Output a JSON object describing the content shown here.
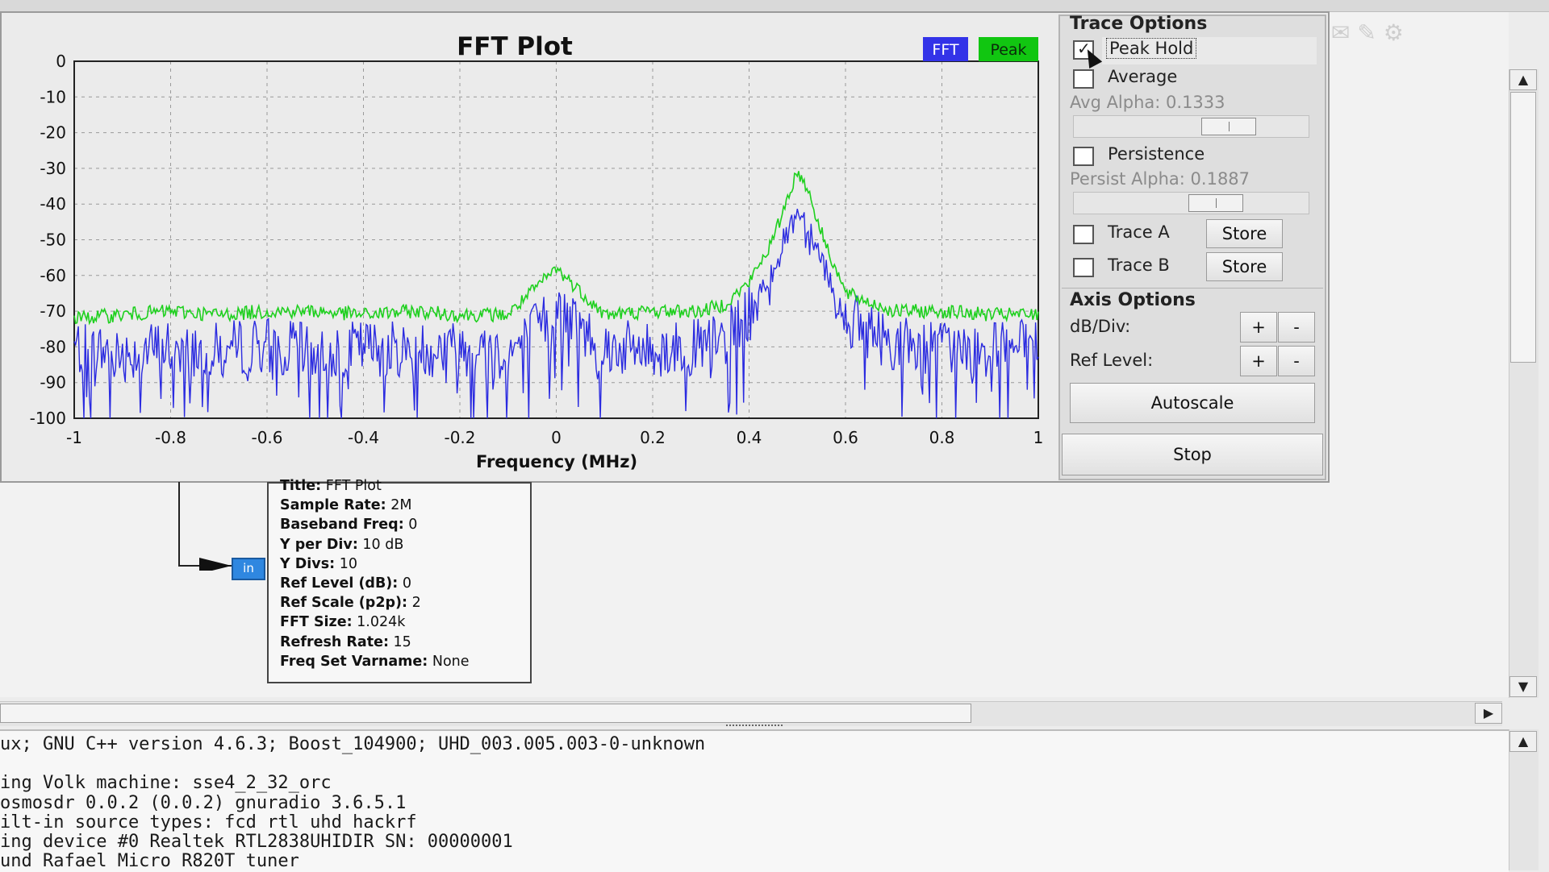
{
  "fft_plot": {
    "legend": {
      "fft": "FFT",
      "peak": "Peak"
    },
    "colors": {
      "fft": "#2b2be0",
      "peak": "#1ed01e",
      "legend_fft_bg": "#3333e8",
      "legend_peak_bg": "#11c611"
    }
  },
  "chart_data": {
    "type": "line",
    "title": "FFT Plot",
    "xlabel": "Frequency (MHz)",
    "ylabel": "",
    "xlim": [
      -1,
      1
    ],
    "ylim": [
      -100,
      0
    ],
    "x_ticks": [
      "-1",
      "-0.8",
      "-0.6",
      "-0.4",
      "-0.2",
      "0",
      "0.2",
      "0.4",
      "0.6",
      "0.8",
      "1"
    ],
    "y_ticks": [
      "0",
      "-10",
      "-20",
      "-30",
      "-40",
      "-50",
      "-60",
      "-70",
      "-80",
      "-90",
      "-100"
    ],
    "grid": true,
    "legend_placement": "top-right",
    "series": [
      {
        "name": "FFT",
        "x": [
          -1,
          -0.9,
          -0.8,
          -0.7,
          -0.6,
          -0.5,
          -0.4,
          -0.3,
          -0.2,
          -0.1,
          0,
          0.1,
          0.2,
          0.3,
          0.35,
          0.4,
          0.45,
          0.48,
          0.5,
          0.52,
          0.55,
          0.6,
          0.7,
          0.8,
          0.9,
          1
        ],
        "y": [
          -80,
          -82,
          -80,
          -81,
          -79,
          -82,
          -80,
          -81,
          -80,
          -82,
          -70,
          -80,
          -81,
          -80,
          -78,
          -70,
          -58,
          -48,
          -42,
          -45,
          -55,
          -72,
          -79,
          -80,
          -81,
          -80
        ]
      },
      {
        "name": "Peak",
        "x": [
          -1,
          -0.9,
          -0.8,
          -0.7,
          -0.6,
          -0.5,
          -0.4,
          -0.3,
          -0.2,
          -0.1,
          0,
          0.1,
          0.2,
          0.3,
          0.35,
          0.4,
          0.45,
          0.48,
          0.5,
          0.52,
          0.55,
          0.6,
          0.7,
          0.8,
          0.9,
          1
        ],
        "y": [
          -72,
          -71,
          -70,
          -71,
          -70,
          -70,
          -71,
          -70,
          -71,
          -71,
          -58,
          -71,
          -70,
          -70,
          -68,
          -62,
          -50,
          -38,
          -31,
          -35,
          -48,
          -65,
          -70,
          -70,
          -71,
          -71
        ]
      }
    ]
  },
  "trace_options": {
    "title": "Trace Options",
    "peak_hold": "Peak Hold",
    "average": "Average",
    "avg_alpha": "Avg Alpha: 0.1333",
    "avg_alpha_value": 0.1333,
    "persistence": "Persistence",
    "persist_alpha": "Persist Alpha: 0.1887",
    "persist_alpha_value": 0.1887,
    "trace_a": "Trace A",
    "trace_b": "Trace B",
    "store": "Store",
    "checked": {
      "peak_hold": true,
      "average": false,
      "persistence": false,
      "trace_a": false,
      "trace_b": false
    }
  },
  "axis_options": {
    "title": "Axis Options",
    "db_div": "dB/Div:",
    "ref_level": "Ref Level:",
    "plus": "+",
    "minus": "-",
    "autoscale": "Autoscale"
  },
  "stop_label": "Stop",
  "block": {
    "port_label": "in",
    "props": [
      {
        "key": "Title:",
        "value": "FFT Plot"
      },
      {
        "key": "Sample Rate:",
        "value": "2M"
      },
      {
        "key": "Baseband Freq:",
        "value": "0"
      },
      {
        "key": "Y per Div:",
        "value": "10 dB"
      },
      {
        "key": "Y Divs:",
        "value": "10"
      },
      {
        "key": "Ref Level (dB):",
        "value": "0"
      },
      {
        "key": "Ref Scale (p2p):",
        "value": "2"
      },
      {
        "key": "FFT Size:",
        "value": "1.024k"
      },
      {
        "key": "Refresh Rate:",
        "value": "15"
      },
      {
        "key": "Freq Set Varname:",
        "value": "None"
      }
    ]
  },
  "console": {
    "lines": [
      "ux; GNU C++ version 4.6.3; Boost_104900; UHD_003.005.003-0-unknown",
      "",
      "ing Volk machine: sse4_2_32_orc",
      "osmosdr 0.0.2 (0.0.2) gnuradio 3.6.5.1",
      "ilt-in source types: fcd rtl uhd hackrf",
      "ing device #0 Realtek RTL2838UHIDIR SN: 00000001",
      "und Rafael Micro R820T tuner"
    ]
  },
  "scroll_glyphs": {
    "up": "▲",
    "down": "▼",
    "right": "▶"
  }
}
